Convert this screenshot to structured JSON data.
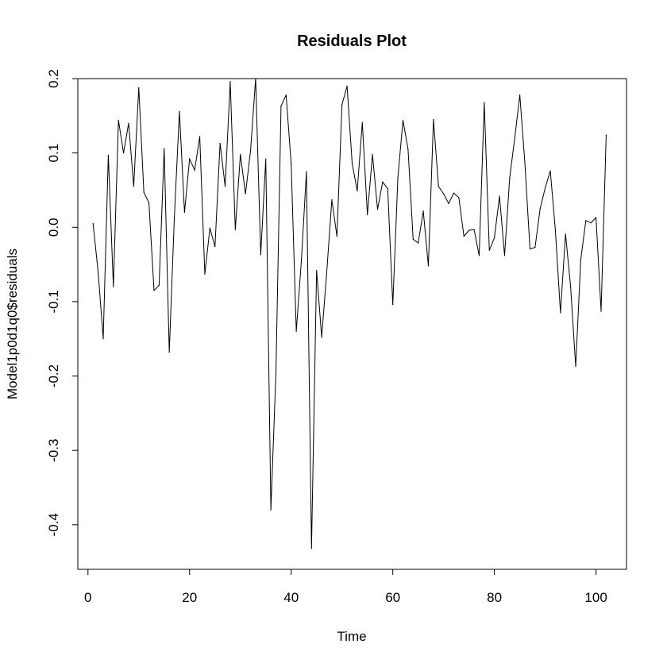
{
  "chart_data": {
    "type": "line",
    "title": "Residuals Plot",
    "xlabel": "Time",
    "ylabel": "Model1p0d1q0$residuals",
    "xlim": [
      -2,
      106
    ],
    "ylim": [
      -0.46,
      0.2
    ],
    "x_ticks": [
      0,
      20,
      40,
      60,
      80,
      100
    ],
    "y_ticks": [
      -0.4,
      -0.3,
      -0.2,
      -0.1,
      0.0,
      0.1,
      0.2
    ],
    "x_tick_labels": [
      "0",
      "20",
      "40",
      "60",
      "80",
      "100"
    ],
    "y_tick_labels": [
      "-0.4",
      "-0.3",
      "-0.2",
      "-0.1",
      "0.0",
      "0.1",
      "0.2"
    ],
    "grid": false,
    "line_color": "#000000",
    "series": [
      {
        "x": [
          1,
          2,
          3,
          4,
          5,
          6,
          7,
          8,
          9,
          10,
          11,
          12,
          13,
          14,
          15,
          16,
          17,
          18,
          19,
          20,
          21,
          22,
          23,
          24,
          25,
          26,
          27,
          28,
          29,
          30,
          31,
          32,
          33,
          34,
          35,
          36,
          37,
          38,
          39,
          40,
          41,
          42,
          43,
          44,
          45,
          46,
          47,
          48,
          49,
          50,
          51,
          52,
          53,
          54,
          55,
          56,
          57,
          58,
          59,
          60,
          61,
          62,
          63,
          64,
          65,
          66,
          67,
          68,
          69,
          70,
          71,
          72,
          73,
          74,
          75,
          76,
          77,
          78,
          79,
          80,
          81,
          82,
          83,
          84,
          85,
          86,
          87,
          88,
          89,
          90,
          91,
          92,
          93,
          94,
          95,
          96,
          97,
          98,
          99,
          100,
          101,
          102
        ],
        "values": [
          0.005,
          -0.06,
          -0.15,
          0.097,
          -0.08,
          0.144,
          0.1,
          0.14,
          0.055,
          0.188,
          0.047,
          0.033,
          -0.085,
          -0.078,
          0.106,
          -0.168,
          0.013,
          0.156,
          0.02,
          0.092,
          0.077,
          0.122,
          -0.063,
          -0.001,
          -0.026,
          0.113,
          0.055,
          0.196,
          -0.003,
          0.098,
          0.045,
          0.103,
          0.2,
          -0.037,
          0.092,
          -0.38,
          -0.195,
          0.163,
          0.178,
          0.085,
          -0.14,
          -0.045,
          0.075,
          -0.432,
          -0.058,
          -0.148,
          -0.06,
          0.037,
          -0.012,
          0.165,
          0.19,
          0.086,
          0.049,
          0.141,
          0.017,
          0.098,
          0.024,
          0.061,
          0.052,
          -0.104,
          0.067,
          0.144,
          0.105,
          -0.016,
          -0.021,
          0.022,
          -0.052,
          0.145,
          0.055,
          0.045,
          0.032,
          0.046,
          0.04,
          -0.012,
          -0.004,
          -0.003,
          -0.038,
          0.168,
          -0.031,
          -0.014,
          0.042,
          -0.038,
          0.066,
          0.12,
          0.178,
          0.086,
          -0.029,
          -0.027,
          0.025,
          0.053,
          0.076,
          -0.004,
          -0.115,
          -0.009,
          -0.08,
          -0.187,
          -0.043,
          0.009,
          0.006,
          0.013,
          -0.113,
          0.124
        ]
      }
    ]
  }
}
